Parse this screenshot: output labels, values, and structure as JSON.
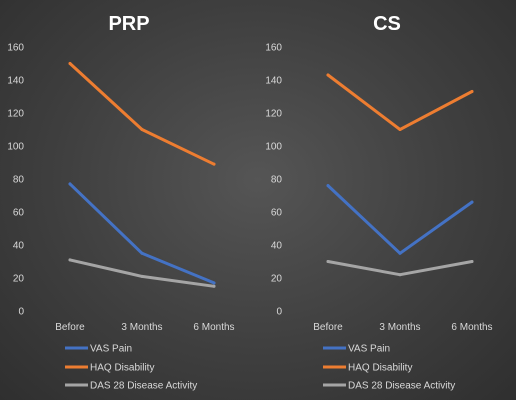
{
  "chart_data": [
    {
      "type": "line",
      "title": "PRP",
      "categories": [
        "Before",
        "3 Months",
        "6 Months"
      ],
      "ylim": [
        0,
        160
      ],
      "yticks": [
        0,
        20,
        40,
        60,
        80,
        100,
        120,
        140,
        160
      ],
      "grid": false,
      "legend_position": "bottom",
      "series": [
        {
          "name": "VAS Pain",
          "color": "#4472c4",
          "values": [
            77,
            35,
            17
          ]
        },
        {
          "name": "HAQ Disability",
          "color": "#ed7d31",
          "values": [
            150,
            110,
            89
          ]
        },
        {
          "name": "DAS 28 Disease Activity",
          "color": "#a5a5a5",
          "values": [
            31,
            21,
            15
          ]
        }
      ]
    },
    {
      "type": "line",
      "title": "CS",
      "categories": [
        "Before",
        "3 Months",
        "6 Months"
      ],
      "ylim": [
        0,
        160
      ],
      "yticks": [
        0,
        20,
        40,
        60,
        80,
        100,
        120,
        140,
        160
      ],
      "grid": false,
      "legend_position": "bottom",
      "series": [
        {
          "name": "VAS Pain",
          "color": "#4472c4",
          "values": [
            76,
            35,
            66
          ]
        },
        {
          "name": "HAQ Disability",
          "color": "#ed7d31",
          "values": [
            143,
            110,
            133
          ]
        },
        {
          "name": "DAS 28 Disease Activity",
          "color": "#a5a5a5",
          "values": [
            30,
            22,
            30
          ]
        }
      ]
    }
  ]
}
